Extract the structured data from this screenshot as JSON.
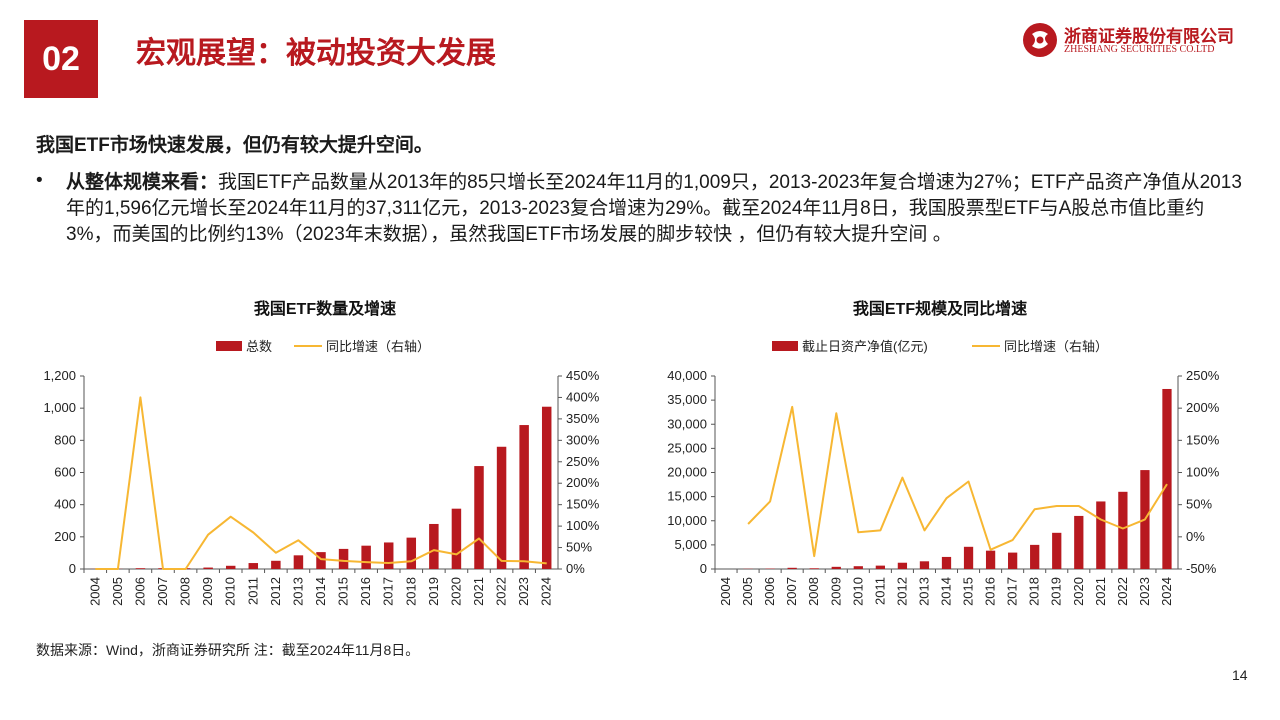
{
  "header": {
    "section_number": "02",
    "section_title": "宏观展望：被动投资大发展",
    "logo_cn": "浙商证券股份有限公司",
    "logo_en": "ZHESHANG SECURITIES CO.LTD"
  },
  "content": {
    "subheading": "我国ETF市场快速发展，但仍有较大提升空间。",
    "bullet": {
      "lead": "从整体规模来看：",
      "text": "我国ETF产品数量从2013年的85只增长至2024年11月的1,009只，2013-2023年复合增速为27%；ETF产品资产净值从2013年的1,596亿元增长至2024年11月的37,311亿元，2013-2023复合增速为29%。截至2024年11月8日，我国股票型ETF与A股总市值比重约3%，而美国的比例约13%（2023年末数据），虽然我国ETF市场发展的脚步较快 ，但仍有较大提升空间 。"
    }
  },
  "colors": {
    "bar": "#b8191f",
    "line": "#f7b733",
    "brand": "#b8191f"
  },
  "chart_data": [
    {
      "type": "bar",
      "title": "我国ETF数量及增速",
      "categories": [
        "2004",
        "2005",
        "2006",
        "2007",
        "2008",
        "2009",
        "2010",
        "2011",
        "2012",
        "2013",
        "2014",
        "2015",
        "2016",
        "2017",
        "2018",
        "2019",
        "2020",
        "2021",
        "2022",
        "2023",
        "2024"
      ],
      "series": [
        {
          "name": "总数",
          "type": "bar",
          "axis": "left",
          "values": [
            1,
            1,
            5,
            5,
            5,
            9,
            20,
            37,
            51,
            85,
            105,
            125,
            145,
            165,
            195,
            280,
            375,
            640,
            760,
            895,
            1009
          ]
        },
        {
          "name": "同比增速（右轴）",
          "type": "line",
          "axis": "right",
          "values": [
            0,
            0,
            400,
            0,
            0,
            80,
            122,
            85,
            38,
            67,
            23,
            19,
            16,
            14,
            18,
            44,
            34,
            71,
            19,
            18,
            13
          ]
        }
      ],
      "y_left": {
        "min": 0,
        "max": 1200,
        "ticks": [
          0,
          200,
          400,
          600,
          800,
          1000,
          1200
        ],
        "tick_labels": [
          "0",
          "200",
          "400",
          "600",
          "800",
          "1,000",
          "1,200"
        ]
      },
      "y_right": {
        "min": 0,
        "max": 450,
        "ticks": [
          0,
          50,
          100,
          150,
          200,
          250,
          300,
          350,
          400,
          450
        ],
        "tick_labels": [
          "0%",
          "50%",
          "100%",
          "150%",
          "200%",
          "250%",
          "300%",
          "350%",
          "400%",
          "450%"
        ]
      },
      "legend": "top"
    },
    {
      "type": "bar",
      "title": "我国ETF规模及同比增速",
      "categories": [
        "2004",
        "2005",
        "2006",
        "2007",
        "2008",
        "2009",
        "2010",
        "2011",
        "2012",
        "2013",
        "2014",
        "2015",
        "2016",
        "2017",
        "2018",
        "2019",
        "2020",
        "2021",
        "2022",
        "2023",
        "2024"
      ],
      "series": [
        {
          "name": "截止日资产净值(亿元)",
          "type": "bar",
          "axis": "left",
          "values": [
            0,
            50,
            80,
            250,
            150,
            450,
            580,
            700,
            1300,
            1596,
            2500,
            4600,
            3800,
            3400,
            5000,
            7500,
            11000,
            14000,
            16000,
            20500,
            37311
          ]
        },
        {
          "name": "同比增速（右轴）",
          "type": "line",
          "axis": "right",
          "values": [
            null,
            20,
            55,
            202,
            -30,
            192,
            7,
            10,
            92,
            10,
            60,
            86,
            -20,
            -5,
            43,
            48,
            48,
            27,
            13,
            27,
            82
          ]
        }
      ],
      "y_left": {
        "min": 0,
        "max": 40000,
        "ticks": [
          0,
          5000,
          10000,
          15000,
          20000,
          25000,
          30000,
          35000,
          40000
        ],
        "tick_labels": [
          "0",
          "5,000",
          "10,000",
          "15,000",
          "20,000",
          "25,000",
          "30,000",
          "35,000",
          "40,000"
        ]
      },
      "y_right": {
        "min": -50,
        "max": 250,
        "ticks": [
          -50,
          0,
          50,
          100,
          150,
          200,
          250
        ],
        "tick_labels": [
          "-50%",
          "0%",
          "50%",
          "100%",
          "150%",
          "200%",
          "250%"
        ]
      },
      "legend": "top"
    }
  ],
  "footer": {
    "note": "数据来源：Wind，浙商证券研究所 注：截至2024年11月8日。",
    "page_number": "14"
  }
}
